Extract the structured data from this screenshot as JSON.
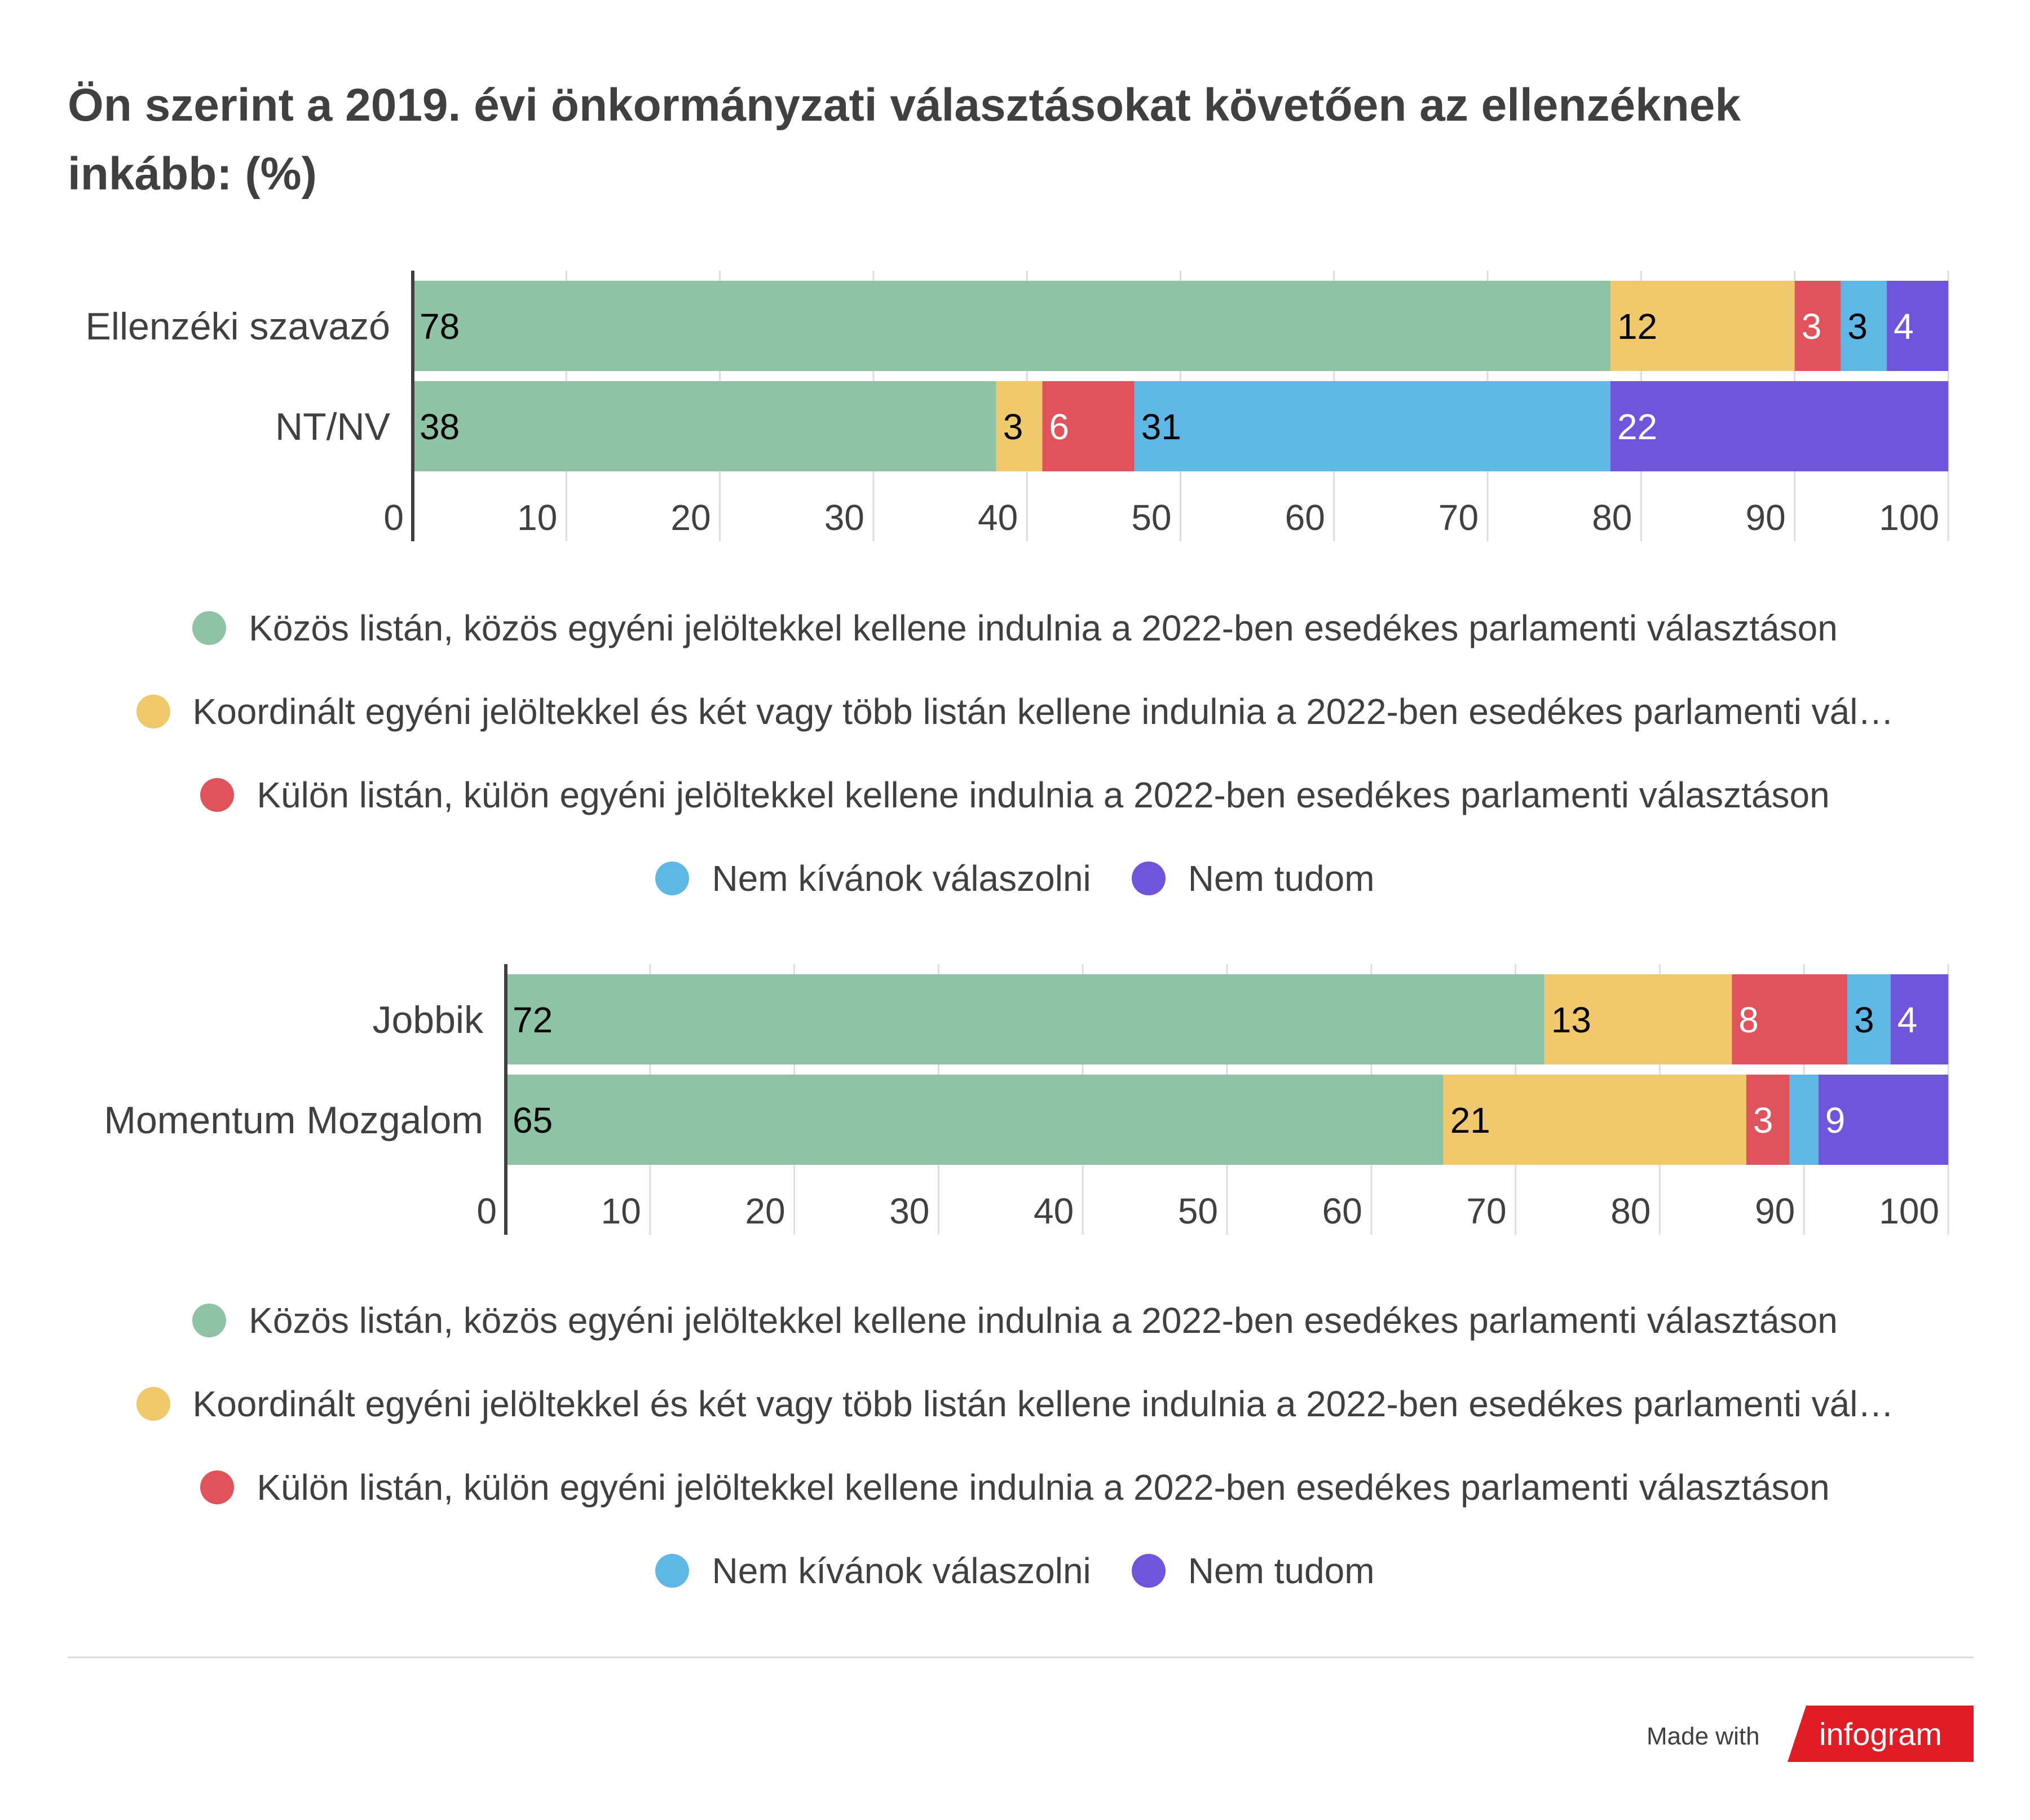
{
  "title": "Ön szerint a 2019. évi önkormányzati választásokat követően az ellenzéknek inkább: (%)",
  "colors": {
    "green": "#8fc3a6",
    "yellow": "#efc96b",
    "red": "#e0535b",
    "blue": "#5fb7e5",
    "purple": "#6e55dc",
    "axis": "#404040",
    "grid": "#dddddd",
    "text": "#404040"
  },
  "legend": [
    {
      "label": "Közös listán, közös egyéni jelöltekkel kellene indulnia a 2022-ben esedékes parlamenti választáson",
      "color": "#8fc3a6"
    },
    {
      "label": "Koordinált egyéni jelöltekkel és két vagy több listán kellene indulnia a 2022-ben esedékes parlamenti vál…",
      "color": "#efc96b"
    },
    {
      "label": "Külön listán, külön egyéni jelöltekkel kellene indulnia a 2022-ben esedékes parlamenti választáson",
      "color": "#e0535b"
    },
    {
      "label": "Nem kívánok válaszolni",
      "color": "#5fb7e5"
    },
    {
      "label": "Nem tudom",
      "color": "#6e55dc"
    }
  ],
  "chart_data": [
    {
      "type": "bar",
      "orientation": "horizontal",
      "stacked": true,
      "categories": [
        "Ellenzéki szavazó",
        "NT/NV"
      ],
      "x_ticks": [
        "0",
        "10",
        "20",
        "30",
        "40",
        "50",
        "60",
        "70",
        "80",
        "90",
        "100"
      ],
      "xlim": [
        0,
        100
      ],
      "series": [
        {
          "name": "Közös listán, közös egyéni jelöltekkel kellene indulnia a 2022-ben esedékes parlamenti választáson",
          "values": [
            78,
            38
          ],
          "labels": [
            "78",
            "38"
          ]
        },
        {
          "name": "Koordinált egyéni jelöltekkel és két vagy több listán kellene indulnia a 2022-ben esedékes parlamenti vál…",
          "values": [
            12,
            3
          ],
          "labels": [
            "12",
            "3"
          ]
        },
        {
          "name": "Külön listán, külön egyéni jelöltekkel kellene indulnia a 2022-ben esedékes parlamenti választáson",
          "values": [
            3,
            6
          ],
          "labels": [
            "3",
            "6"
          ]
        },
        {
          "name": "Nem kívánok válaszolni",
          "values": [
            3,
            31
          ],
          "labels": [
            "3",
            "31"
          ]
        },
        {
          "name": "Nem tudom",
          "values": [
            4,
            22
          ],
          "labels": [
            "4",
            "22"
          ]
        }
      ]
    },
    {
      "type": "bar",
      "orientation": "horizontal",
      "stacked": true,
      "categories": [
        "Jobbik",
        "Momentum Mozgalom"
      ],
      "x_ticks": [
        "0",
        "10",
        "20",
        "30",
        "40",
        "50",
        "60",
        "70",
        "80",
        "90",
        "100"
      ],
      "xlim": [
        0,
        100
      ],
      "series": [
        {
          "name": "Közös listán, közös egyéni jelöltekkel kellene indulnia a 2022-ben esedékes parlamenti választáson",
          "values": [
            72,
            65
          ],
          "labels": [
            "72",
            "65"
          ]
        },
        {
          "name": "Koordinált egyéni jelöltekkel és két vagy több listán kellene indulnia a 2022-ben esedékes parlamenti vál…",
          "values": [
            13,
            21
          ],
          "labels": [
            "13",
            "21"
          ]
        },
        {
          "name": "Külön listán, külön egyéni jelöltekkel kellene indulnia a 2022-ben esedékes parlamenti választáson",
          "values": [
            8,
            3
          ],
          "labels": [
            "8",
            "3"
          ]
        },
        {
          "name": "Nem kívánok válaszolni",
          "values": [
            3,
            2
          ],
          "labels": [
            "3",
            ""
          ]
        },
        {
          "name": "Nem tudom",
          "values": [
            4,
            9
          ],
          "labels": [
            "4",
            "9"
          ]
        }
      ]
    }
  ],
  "footer": {
    "made_with": "Made with",
    "brand": "infogram"
  }
}
